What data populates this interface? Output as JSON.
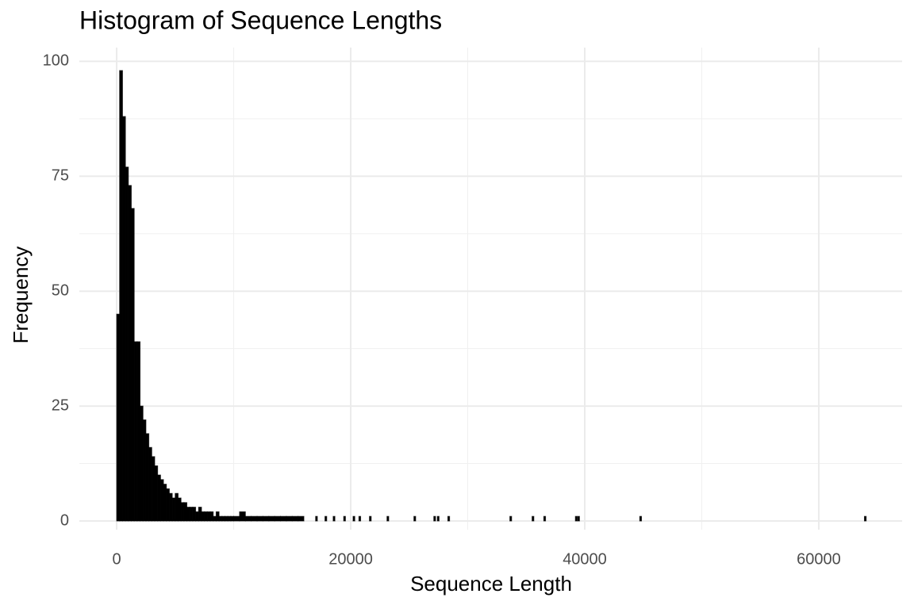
{
  "chart_data": {
    "type": "histogram",
    "title": "Histogram of Sequence Lengths",
    "x_label": "Sequence Length",
    "y_label": "Frequency",
    "bins": [
      0,
      250,
      500,
      750,
      1000,
      1250,
      1500,
      1750,
      2000,
      2250,
      2500,
      2750,
      3000,
      3250,
      3500,
      3750,
      4000,
      4250,
      4500,
      4750,
      5000,
      5250,
      5500,
      5750,
      6000,
      6250,
      6500,
      6750,
      7000,
      7250,
      7500,
      7750,
      8000,
      8250,
      8500,
      8750,
      9000,
      9250,
      9500,
      9750,
      10000,
      10500,
      11000,
      11500,
      12000,
      12500,
      13000,
      13500,
      14000,
      14500,
      15000,
      15500,
      16000,
      17000,
      17150,
      17800,
      17950,
      18500,
      18650,
      19400,
      19550,
      20200,
      20350,
      20700,
      20850,
      21600,
      21750,
      23100,
      23250,
      25400,
      25550,
      27100,
      27250,
      27400,
      27550,
      28300,
      28450,
      33600,
      33750,
      35500,
      35650,
      36500,
      36650,
      39200,
      39350,
      39400,
      39550,
      44700,
      44850,
      63900,
      64050
    ],
    "values": [
      45,
      98,
      88,
      77,
      73,
      68,
      39,
      39,
      25,
      22,
      19,
      16,
      14,
      12,
      10,
      9,
      8,
      7,
      6,
      5,
      6,
      5,
      4,
      4,
      3,
      3,
      3,
      2,
      3,
      2,
      2,
      2,
      2,
      1,
      2,
      1,
      1,
      1,
      1,
      1,
      1,
      2,
      1,
      1,
      1,
      1,
      1,
      1,
      1,
      1,
      1,
      1,
      0,
      1,
      0,
      1,
      0,
      1,
      0,
      1,
      0,
      1,
      0,
      1,
      0,
      1,
      0,
      1,
      0,
      1,
      0,
      1,
      0,
      1,
      0,
      1,
      0,
      1,
      0,
      1,
      0,
      1,
      0,
      1,
      0,
      1,
      0,
      1,
      0,
      1
    ],
    "color": "#000000",
    "xlim": [
      -3190,
      67120
    ],
    "xticks": [
      0,
      20000,
      40000,
      60000
    ],
    "ylim": [
      -1.9,
      103
    ],
    "yticks": [
      0,
      25,
      50,
      75,
      100
    ],
    "grid": true
  }
}
